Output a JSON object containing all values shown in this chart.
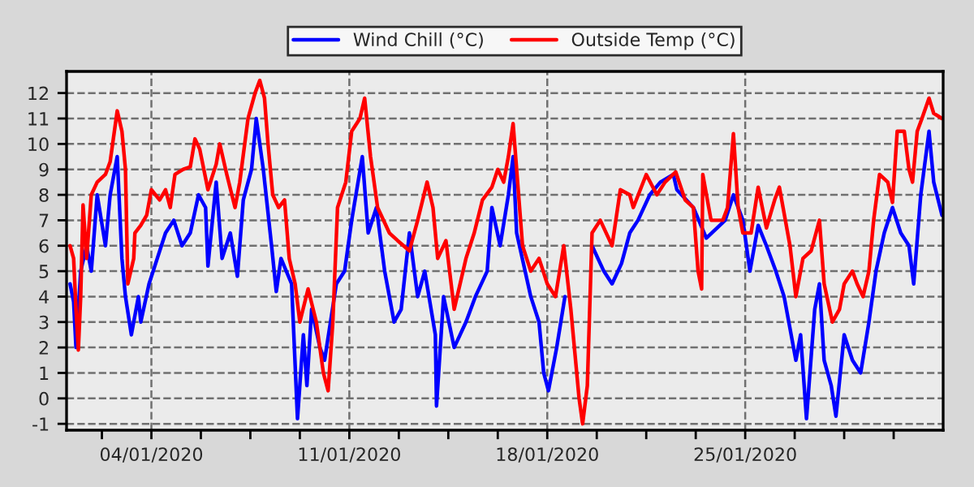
{
  "chart_data": {
    "type": "line",
    "xlim": [
      "2020-01-01",
      "2020-02-01"
    ],
    "xticks": [
      {
        "value": "2020-01-02T06:00",
        "label": null
      },
      {
        "value": "2020-01-04",
        "label": "04/01/2020"
      },
      {
        "value": "2020-01-05T18:00",
        "label": null
      },
      {
        "value": "2020-01-07T12:00",
        "label": null
      },
      {
        "value": "2020-01-09T06:00",
        "label": null
      },
      {
        "value": "2020-01-11",
        "label": "11/01/2020"
      },
      {
        "value": "2020-01-12T18:00",
        "label": null
      },
      {
        "value": "2020-01-14T12:00",
        "label": null
      },
      {
        "value": "2020-01-16T06:00",
        "label": null
      },
      {
        "value": "2020-01-18",
        "label": "18/01/2020"
      },
      {
        "value": "2020-01-19T18:00",
        "label": null
      },
      {
        "value": "2020-01-21T12:00",
        "label": null
      },
      {
        "value": "2020-01-23T06:00",
        "label": null
      },
      {
        "value": "2020-01-25",
        "label": "25/01/2020"
      },
      {
        "value": "2020-01-26T18:00",
        "label": null
      },
      {
        "value": "2020-01-28T12:00",
        "label": null
      },
      {
        "value": "2020-01-30T06:00",
        "label": null
      }
    ],
    "ylim": [
      -1.25,
      12.85
    ],
    "yticks": [
      -1,
      0,
      1,
      2,
      3,
      4,
      5,
      6,
      7,
      8,
      9,
      10,
      11,
      12
    ],
    "grid": true,
    "legend": "top right",
    "series": [
      {
        "name": "Wind Chill (°C)",
        "color": "#0000ff",
        "x": [
          "2020-01-01T03:00",
          "2020-01-01T06:00",
          "2020-01-01T08:00",
          "2020-01-01T12:00",
          "2020-01-01T17:00",
          "2020-01-01T21:00",
          "2020-01-02T02:00",
          "2020-01-02T09:00",
          "2020-01-02T13:00",
          "2020-01-02T19:00",
          "2020-01-02T23:00",
          "2020-01-03T02:00",
          "2020-01-03T07:00",
          "2020-01-03T13:00",
          "2020-01-03T15:00",
          "2020-01-03T22:00",
          "2020-01-04T05:00",
          "2020-01-04T12:00",
          "2020-01-04T19:00",
          "2020-01-05T02:00",
          "2020-01-05T09:00",
          "2020-01-05T16:00",
          "2020-01-05T22:00",
          "2020-01-06T00:00",
          "2020-01-06T07:00",
          "2020-01-06T12:00",
          "2020-01-06T19:00",
          "2020-01-07T01:00",
          "2020-01-07T06:00",
          "2020-01-07T13:00",
          "2020-01-07T17:00",
          "2020-01-07T23:00",
          "2020-01-08T06:00",
          "2020-01-08T10:00",
          "2020-01-08T14:00",
          "2020-01-08T23:00",
          "2020-01-09T04:00",
          "2020-01-09T09:00",
          "2020-01-09T12:00",
          "2020-01-09T16:00",
          "2020-01-09T23:00",
          "2020-01-10T03:00",
          "2020-01-10T13:00",
          "2020-01-10T20:00",
          "2020-01-11T02:00",
          "2020-01-11T11:00",
          "2020-01-11T16:00",
          "2020-01-11T23:00",
          "2020-01-12T06:00",
          "2020-01-12T14:00",
          "2020-01-12T20:00",
          "2020-01-13T03:00",
          "2020-01-13T10:00",
          "2020-01-13T16:00",
          "2020-01-14T01:00",
          "2020-01-14T02:00",
          "2020-01-14T08:00",
          "2020-01-14T17:00",
          "2020-01-15T03:00",
          "2020-01-15T11:00",
          "2020-01-15T21:00",
          "2020-01-16T01:00",
          "2020-01-16T08:00",
          "2020-01-16T15:00",
          "2020-01-16T19:00",
          "2020-01-16T22:00",
          "2020-01-17T10:00",
          "2020-01-17T17:00",
          "2020-01-17T21:00",
          "2020-01-18T01:00",
          "2020-01-18T08:00",
          "2020-01-18T15:00",
          "2020-01-19T01:00",
          "2020-01-19T14:00",
          "2020-01-20T00:00",
          "2020-01-20T07:00",
          "2020-01-20T15:00",
          "2020-01-20T22:00",
          "2020-01-21T05:00",
          "2020-01-21T15:00",
          "2020-01-22T00:00",
          "2020-01-22T11:00",
          "2020-01-22T14:00",
          "2020-01-23T04:00",
          "2020-01-23T15:00",
          "2020-01-24T07:00",
          "2020-01-24T14:00",
          "2020-01-24T22:00",
          "2020-01-25T04:00",
          "2020-01-25T11:00",
          "2020-01-25T18:00",
          "2020-01-26T02:00",
          "2020-01-26T09:00",
          "2020-01-26T19:00",
          "2020-01-26T23:00",
          "2020-01-27T04:00",
          "2020-01-27T11:00",
          "2020-01-27T15:00",
          "2020-01-27T19:00",
          "2020-01-28T01:00",
          "2020-01-28T05:00",
          "2020-01-28T12:00",
          "2020-01-28T19:00",
          "2020-01-29T02:00",
          "2020-01-29T09:00",
          "2020-01-29T15:00",
          "2020-01-29T22:00",
          "2020-01-30T05:00",
          "2020-01-30T12:00",
          "2020-01-30T19:00",
          "2020-01-30T23:00",
          "2020-01-31T05:00",
          "2020-01-31T12:00",
          "2020-01-31T16:00",
          "2020-01-31T23:00"
        ],
        "values": [
          4.5,
          3.8,
          2,
          5,
          6,
          5,
          8,
          6,
          8,
          9.5,
          5.5,
          4,
          2.5,
          4,
          3,
          4.5,
          5.5,
          6.5,
          7,
          6,
          6.5,
          8,
          7.5,
          5.2,
          8.5,
          5.5,
          6.5,
          4.8,
          7.8,
          9,
          11,
          9,
          6,
          4.2,
          5.5,
          4.5,
          -0.8,
          2.5,
          0.5,
          3.5,
          2,
          1.5,
          4.5,
          5,
          7,
          9.5,
          6.5,
          7.5,
          5,
          3,
          3.5,
          6.5,
          4,
          5,
          2.5,
          -0.3,
          4,
          2,
          3,
          4,
          5,
          7.5,
          6,
          8,
          9.5,
          6.5,
          4,
          3,
          1,
          0.3,
          2,
          4,
          null,
          6,
          5,
          4.5,
          5.3,
          6.5,
          7,
          8,
          8.5,
          8.8,
          8.2,
          7.5,
          6.3,
          7,
          8,
          7,
          5,
          6.8,
          6,
          5,
          4,
          1.5,
          2.5,
          -0.8,
          3.5,
          4.5,
          1.5,
          0.5,
          -0.7,
          2.5,
          1.5,
          1,
          3,
          5,
          6.5,
          7.5,
          6.5,
          6,
          4.5,
          8,
          10.5,
          8.5,
          7.2
        ]
      },
      {
        "name": "Outside Temp (°C)",
        "color": "#ff0000",
        "x": [
          "2020-01-01T03:00",
          "2020-01-01T06:00",
          "2020-01-01T08:00",
          "2020-01-01T10:00",
          "2020-01-01T12:00",
          "2020-01-01T14:00",
          "2020-01-01T17:00",
          "2020-01-01T21:00",
          "2020-01-02T02:00",
          "2020-01-02T09:00",
          "2020-01-02T13:00",
          "2020-01-02T19:00",
          "2020-01-02T23:00",
          "2020-01-03T02:00",
          "2020-01-03T04:00",
          "2020-01-03T09:00",
          "2020-01-03T10:00",
          "2020-01-03T15:00",
          "2020-01-03T20:00",
          "2020-01-04T00:00",
          "2020-01-04T07:00",
          "2020-01-04T12:00",
          "2020-01-04T16:00",
          "2020-01-04T20:00",
          "2020-01-05T03:00",
          "2020-01-05T09:00",
          "2020-01-05T13:00",
          "2020-01-05T17:00",
          "2020-01-06T00:00",
          "2020-01-06T07:00",
          "2020-01-06T10:00",
          "2020-01-06T16:00",
          "2020-01-06T23:00",
          "2020-01-07T03:00",
          "2020-01-07T10:00",
          "2020-01-07T16:00",
          "2020-01-07T20:00",
          "2020-01-08T00:00",
          "2020-01-08T03:00",
          "2020-01-08T07:00",
          "2020-01-08T12:00",
          "2020-01-08T17:00",
          "2020-01-08T21:00",
          "2020-01-09T02:00",
          "2020-01-09T06:00",
          "2020-01-09T13:00",
          "2020-01-09T20:00",
          "2020-01-10T02:00",
          "2020-01-10T06:00",
          "2020-01-10T10:00",
          "2020-01-10T14:00",
          "2020-01-10T21:00",
          "2020-01-11T02:00",
          "2020-01-11T09:00",
          "2020-01-11T13:00",
          "2020-01-11T18:00",
          "2020-01-12T00:00",
          "2020-01-12T10:00",
          "2020-01-12T17:00",
          "2020-01-13T03:00",
          "2020-01-13T10:00",
          "2020-01-13T18:00",
          "2020-01-13T23:00",
          "2020-01-14T03:00",
          "2020-01-14T10:00",
          "2020-01-14T17:00",
          "2020-01-15T03:00",
          "2020-01-15T10:00",
          "2020-01-15T17:00",
          "2020-01-16T01:00",
          "2020-01-16T06:00",
          "2020-01-16T11:00",
          "2020-01-16T15:00",
          "2020-01-16T19:00",
          "2020-01-16T22:00",
          "2020-01-17T03:00",
          "2020-01-17T10:00",
          "2020-01-17T17:00",
          "2020-01-18T00:00",
          "2020-01-18T07:00",
          "2020-01-18T14:00",
          "2020-01-18T20:00",
          "2020-01-19T03:00",
          "2020-01-19T06:00",
          "2020-01-19T10:00",
          "2020-01-19T14:00",
          "2020-01-19T21:00",
          "2020-01-20T07:00",
          "2020-01-20T14:00",
          "2020-01-20T22:00",
          "2020-01-21T01:00",
          "2020-01-21T12:00",
          "2020-01-21T21:00",
          "2020-01-22T04:00",
          "2020-01-22T13:00",
          "2020-01-22T21:00",
          "2020-01-23T04:00",
          "2020-01-23T08:00",
          "2020-01-23T11:00",
          "2020-01-23T12:00",
          "2020-01-23T19:00",
          "2020-01-24T05:00",
          "2020-01-24T09:00",
          "2020-01-24T14:00",
          "2020-01-24T18:00",
          "2020-01-24T22:00",
          "2020-01-25T05:00",
          "2020-01-25T11:00",
          "2020-01-25T18:00",
          "2020-01-26T01:00",
          "2020-01-26T05:00",
          "2020-01-26T14:00",
          "2020-01-26T19:00",
          "2020-01-27T01:00",
          "2020-01-27T08:00",
          "2020-01-27T15:00",
          "2020-01-27T19:00",
          "2020-01-28T02:00",
          "2020-01-28T08:00",
          "2020-01-28T12:00",
          "2020-01-28T19:00",
          "2020-01-28T23:00",
          "2020-01-29T04:00",
          "2020-01-29T09:00",
          "2020-01-29T13:00",
          "2020-01-29T18:00",
          "2020-01-30T01:00",
          "2020-01-30T05:00",
          "2020-01-30T09:00",
          "2020-01-30T15:00",
          "2020-01-30T19:00",
          "2020-01-30T22:00",
          "2020-01-31T02:00",
          "2020-01-31T06:00",
          "2020-01-31T12:00",
          "2020-01-31T16:00",
          "2020-01-31T23:00"
        ],
        "values": [
          6,
          5.5,
          3.5,
          1.9,
          4,
          7.6,
          5.5,
          8,
          8.5,
          8.8,
          9.3,
          11.3,
          10.5,
          9,
          4.5,
          5.5,
          6.5,
          6.8,
          7.2,
          8.2,
          7.8,
          8.2,
          7.5,
          8.8,
          9,
          9.1,
          10.2,
          9.8,
          8.2,
          9.2,
          10,
          8.8,
          7.5,
          8.5,
          11,
          12,
          12.5,
          11.8,
          10,
          8,
          7.5,
          7.8,
          5.5,
          4.5,
          3,
          4.3,
          3,
          1,
          0.3,
          3,
          7.5,
          8.5,
          10.5,
          11,
          11.8,
          9.5,
          7.5,
          6.5,
          6.2,
          5.8,
          7,
          8.5,
          7.5,
          5.5,
          6.2,
          3.5,
          5.5,
          6.5,
          7.8,
          8.3,
          9,
          8.5,
          9.5,
          10.8,
          9,
          6,
          5,
          5.5,
          4.5,
          4,
          6,
          3.5,
          0,
          -1,
          0.5,
          6.5,
          7,
          6,
          8.2,
          8,
          7.5,
          8.8,
          8,
          8.5,
          8.9,
          7.8,
          7.5,
          5,
          4.3,
          8.8,
          7,
          7,
          7.5,
          10.4,
          7.5,
          6.5,
          6.5,
          8.3,
          6.7,
          7.8,
          8.3,
          6,
          4,
          5.5,
          5.8,
          7,
          4.5,
          3,
          3.5,
          4.5,
          5,
          4.5,
          4,
          5,
          7,
          8.8,
          8.5,
          7.7,
          10.5,
          10.5,
          9,
          8.5,
          10.5,
          11,
          11.8,
          11.2,
          11
        ]
      }
    ]
  }
}
